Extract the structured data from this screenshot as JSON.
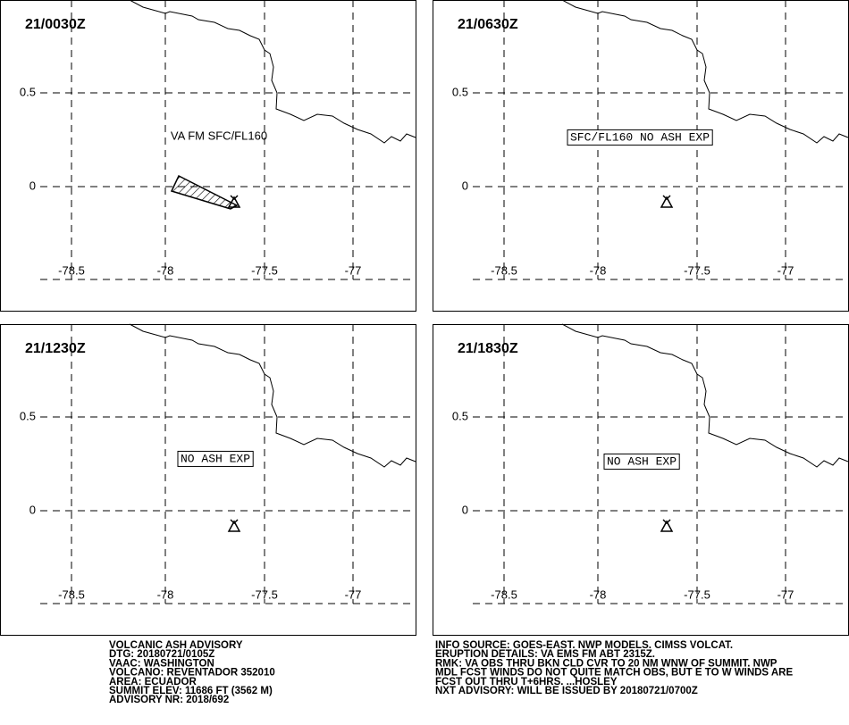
{
  "panels": [
    {
      "time": "21/0030Z",
      "annotation": "VA FM SFC/FL160"
    },
    {
      "time": "21/0630Z",
      "annotation": "SFC/FL160 NO ASH EXP"
    },
    {
      "time": "21/1230Z",
      "annotation": "NO ASH EXP"
    },
    {
      "time": "21/1830Z",
      "annotation": "NO ASH EXP"
    }
  ],
  "axes": {
    "lat_labels": [
      "0.5",
      "0"
    ],
    "lon_labels": [
      "-78.5",
      "-78",
      "-77.5",
      "-77"
    ]
  },
  "advisory": {
    "left": [
      "VOLCANIC ASH ADVISORY",
      "DTG: 20180721/0105Z",
      "VAAC: WASHINGTON",
      "VOLCANO: REVENTADOR 352010",
      "AREA: ECUADOR",
      "SUMMIT ELEV: 11686 FT (3562 M)",
      "ADVISORY NR: 2018/692"
    ],
    "right": [
      "INFO SOURCE: GOES-EAST. NWP MODELS. CIMSS VOLCAT.",
      "ERUPTION DETAILS: VA EMS FM ABT 2315Z.",
      "RMK: VA OBS THRU BKN CLD CVR TO 20 NM WNW OF SUMMIT. NWP",
      "MDL FCST WINDS DO NOT QUITE MATCH OBS, BUT E TO W WINDS ARE",
      "FCST OUT THRU T+6HRS. ...HOSLEY",
      "NXT ADVISORY: WILL BE ISSUED BY 20180721/0700Z"
    ]
  }
}
